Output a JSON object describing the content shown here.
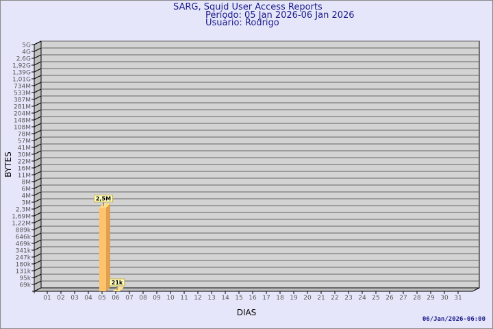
{
  "header": {
    "title": "SARG, Squid User Access Reports",
    "period": "Período: 05 Jan 2026-06 Jan 2026",
    "user": "Usuário: Rodrigo"
  },
  "footer": {
    "timestamp": "06/Jan/2026-06:00"
  },
  "colors": {
    "background": "#e6e6fa",
    "wall": "#d3d3d3",
    "bar_front": "#ffc36b",
    "bar_side": "#e0a050",
    "label_bg": "#ffffc0",
    "title": "#1a1a8c"
  },
  "chart_data": {
    "type": "bar",
    "xlabel": "DIAS",
    "ylabel": "BYTES",
    "yscale": "log",
    "grid": true,
    "ytick_labels": [
      "5G",
      "4G",
      "2,6G",
      "1,92G",
      "1,39G",
      "1,01G",
      "734M",
      "533M",
      "387M",
      "281M",
      "204M",
      "148M",
      "108M",
      "78M",
      "57M",
      "41M",
      "30M",
      "22M",
      "16M",
      "11M",
      "8M",
      "6M",
      "4M",
      "3M",
      "2,3M",
      "1,69M",
      "1,22M",
      "889k",
      "646k",
      "469k",
      "341k",
      "247k",
      "180k",
      "131k",
      "95k",
      "69k"
    ],
    "categories": [
      "01",
      "02",
      "03",
      "04",
      "05",
      "06",
      "07",
      "08",
      "09",
      "10",
      "11",
      "12",
      "13",
      "14",
      "15",
      "16",
      "17",
      "18",
      "19",
      "20",
      "21",
      "22",
      "23",
      "24",
      "25",
      "26",
      "27",
      "28",
      "29",
      "30",
      "31"
    ],
    "bars": [
      {
        "day": "05",
        "value": 2500000,
        "label": "2,5M"
      },
      {
        "day": "06",
        "value": 21000,
        "label": "21k"
      }
    ]
  }
}
